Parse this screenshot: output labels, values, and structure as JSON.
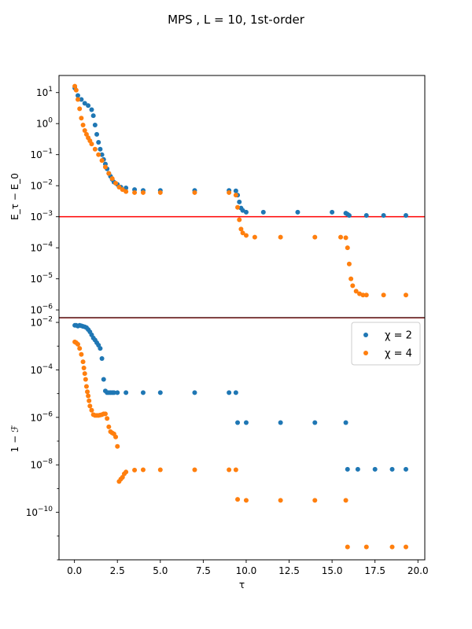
{
  "figure": {
    "title": "MPS , $L = 10$, 1st-order",
    "title_display": "MPS , L = 10, 1st-order"
  },
  "chart_data": [
    {
      "type": "scatter",
      "panel": "top",
      "ylabel": "E_τ − E_0",
      "xlabel": "",
      "yscale": "log",
      "xlim": [
        -0.9,
        20.4
      ],
      "ylim_log10": [
        -6.25,
        1.55
      ],
      "y_tick_labels": [
        "10^1",
        "10^0",
        "10^-1",
        "10^-2",
        "10^-3",
        "10^-4",
        "10^-5",
        "10^-6"
      ],
      "y_tick_exponents": [
        1,
        0,
        -1,
        -2,
        -3,
        -4,
        -5,
        -6
      ],
      "hlines": [
        {
          "y": 0.001,
          "color": "#ff0000"
        },
        {
          "y": 5.6e-07,
          "color": "#ff0000"
        }
      ],
      "series": [
        {
          "name": "χ = 2",
          "color": "#1f77b4",
          "x": [
            0.02,
            0.2,
            0.4,
            0.6,
            0.8,
            1.0,
            1.1,
            1.2,
            1.3,
            1.4,
            1.5,
            1.6,
            1.7,
            1.8,
            1.9,
            2.0,
            2.1,
            2.2,
            2.3,
            2.5,
            2.7,
            3.0,
            3.5,
            4.0,
            5.0,
            7.0,
            9.0,
            9.4,
            9.5,
            9.6,
            9.7,
            9.8,
            10.0,
            11.0,
            13.0,
            15.0,
            15.8,
            15.9,
            16.0,
            17.0,
            18.0,
            19.3
          ],
          "y": [
            14.0,
            8.0,
            6.0,
            4.5,
            3.8,
            2.8,
            1.8,
            0.9,
            0.45,
            0.25,
            0.15,
            0.1,
            0.07,
            0.05,
            0.035,
            0.025,
            0.02,
            0.016,
            0.013,
            0.011,
            0.009,
            0.0085,
            0.0075,
            0.007,
            0.007,
            0.007,
            0.007,
            0.0068,
            0.005,
            0.003,
            0.0019,
            0.0016,
            0.0014,
            0.0014,
            0.0014,
            0.0014,
            0.0013,
            0.0012,
            0.0011,
            0.0011,
            0.0011,
            0.0011
          ]
        },
        {
          "name": "χ = 4",
          "color": "#ff7f0e",
          "x": [
            0.02,
            0.1,
            0.2,
            0.3,
            0.4,
            0.5,
            0.6,
            0.7,
            0.8,
            0.9,
            1.0,
            1.2,
            1.4,
            1.6,
            1.8,
            2.0,
            2.2,
            2.4,
            2.6,
            2.8,
            3.0,
            3.5,
            4.0,
            5.0,
            7.0,
            9.0,
            9.4,
            9.5,
            9.6,
            9.7,
            9.8,
            10.0,
            10.5,
            12.0,
            14.0,
            15.5,
            15.8,
            15.9,
            16.0,
            16.1,
            16.2,
            16.4,
            16.6,
            16.8,
            17.0,
            18.0,
            19.3
          ],
          "y": [
            16.0,
            12.0,
            6.0,
            3.0,
            1.5,
            0.9,
            0.6,
            0.45,
            0.35,
            0.28,
            0.22,
            0.15,
            0.1,
            0.065,
            0.04,
            0.025,
            0.017,
            0.012,
            0.009,
            0.0075,
            0.0065,
            0.006,
            0.006,
            0.006,
            0.006,
            0.006,
            0.005,
            0.002,
            0.0008,
            0.0004,
            0.0003,
            0.00025,
            0.00022,
            0.00022,
            0.00022,
            0.00022,
            0.00021,
            0.0001,
            3e-05,
            1e-05,
            6e-06,
            4e-06,
            3.3e-06,
            3e-06,
            3e-06,
            3e-06,
            3e-06
          ]
        }
      ]
    },
    {
      "type": "scatter",
      "panel": "bottom",
      "ylabel": "1 − ℱ",
      "xlabel": "τ",
      "yscale": "log",
      "xlim": [
        -0.9,
        20.4
      ],
      "ylim_log10": [
        -12.0,
        -1.8
      ],
      "x_ticks": [
        0.0,
        2.5,
        5.0,
        7.5,
        10.0,
        12.5,
        15.0,
        17.5,
        20.0
      ],
      "x_tick_labels": [
        "0.0",
        "2.5",
        "5.0",
        "7.5",
        "10.0",
        "12.5",
        "15.0",
        "17.5",
        "20.0"
      ],
      "y_tick_labels": [
        "10^-2",
        "10^-4",
        "10^-6",
        "10^-8",
        "10^-10"
      ],
      "y_tick_exponents": [
        -2,
        -4,
        -6,
        -8,
        -10
      ],
      "legend": {
        "location": "upper right",
        "entries": [
          "χ = 2",
          "χ = 4"
        ]
      },
      "series": [
        {
          "name": "χ = 2",
          "color": "#1f77b4",
          "x": [
            0.02,
            0.1,
            0.2,
            0.3,
            0.4,
            0.5,
            0.6,
            0.7,
            0.8,
            0.9,
            1.0,
            1.1,
            1.2,
            1.3,
            1.4,
            1.5,
            1.6,
            1.7,
            1.8,
            1.9,
            2.0,
            2.1,
            2.2,
            2.3,
            2.5,
            3.0,
            4.0,
            5.0,
            7.0,
            9.0,
            9.4,
            9.5,
            10.0,
            12.0,
            14.0,
            15.8,
            15.9,
            16.5,
            17.5,
            18.5,
            19.3
          ],
          "y": [
            0.0075,
            0.0075,
            0.007,
            0.0075,
            0.0072,
            0.0068,
            0.0065,
            0.006,
            0.005,
            0.004,
            0.003,
            0.0022,
            0.0018,
            0.0014,
            0.0011,
            0.0008,
            0.0003,
            4e-05,
            1.3e-05,
            1.1e-05,
            1.1e-05,
            1.1e-05,
            1.1e-05,
            1.1e-05,
            1.1e-05,
            1.1e-05,
            1.1e-05,
            1.1e-05,
            1.1e-05,
            1.1e-05,
            1.1e-05,
            6e-07,
            6e-07,
            6e-07,
            6e-07,
            6e-07,
            6.5e-09,
            6.5e-09,
            6.5e-09,
            6.5e-09,
            6.5e-09
          ]
        },
        {
          "name": "χ = 4",
          "color": "#ff7f0e",
          "x": [
            0.02,
            0.1,
            0.2,
            0.3,
            0.4,
            0.5,
            0.55,
            0.6,
            0.65,
            0.7,
            0.75,
            0.8,
            0.85,
            0.9,
            1.0,
            1.1,
            1.2,
            1.3,
            1.4,
            1.5,
            1.6,
            1.7,
            1.8,
            1.9,
            2.0,
            2.1,
            2.2,
            2.3,
            2.4,
            2.5,
            2.6,
            2.7,
            2.8,
            2.9,
            3.0,
            3.5,
            4.0,
            5.0,
            7.0,
            9.0,
            9.4,
            9.5,
            10.0,
            12.0,
            14.0,
            15.8,
            15.9,
            17.0,
            18.5,
            19.3
          ],
          "y": [
            0.0015,
            0.0014,
            0.0012,
            0.0008,
            0.00045,
            0.00022,
            0.00012,
            7e-05,
            4e-05,
            2e-05,
            1.2e-05,
            8e-06,
            5e-06,
            3e-06,
            2e-06,
            1.3e-06,
            1.2e-06,
            1.2e-06,
            1.2e-06,
            1.25e-06,
            1.3e-06,
            1.4e-06,
            1.4e-06,
            9e-07,
            4e-07,
            2.5e-07,
            2.2e-07,
            2e-07,
            1.5e-07,
            6e-08,
            2e-09,
            2.5e-09,
            3e-09,
            4.2e-09,
            5e-09,
            6e-09,
            6.2e-09,
            6.2e-09,
            6.2e-09,
            6.2e-09,
            6.2e-09,
            3.5e-10,
            3.2e-10,
            3.2e-10,
            3.2e-10,
            3.2e-10,
            3.5e-12,
            3.5e-12,
            3.5e-12,
            3.5e-12
          ]
        }
      ]
    }
  ]
}
